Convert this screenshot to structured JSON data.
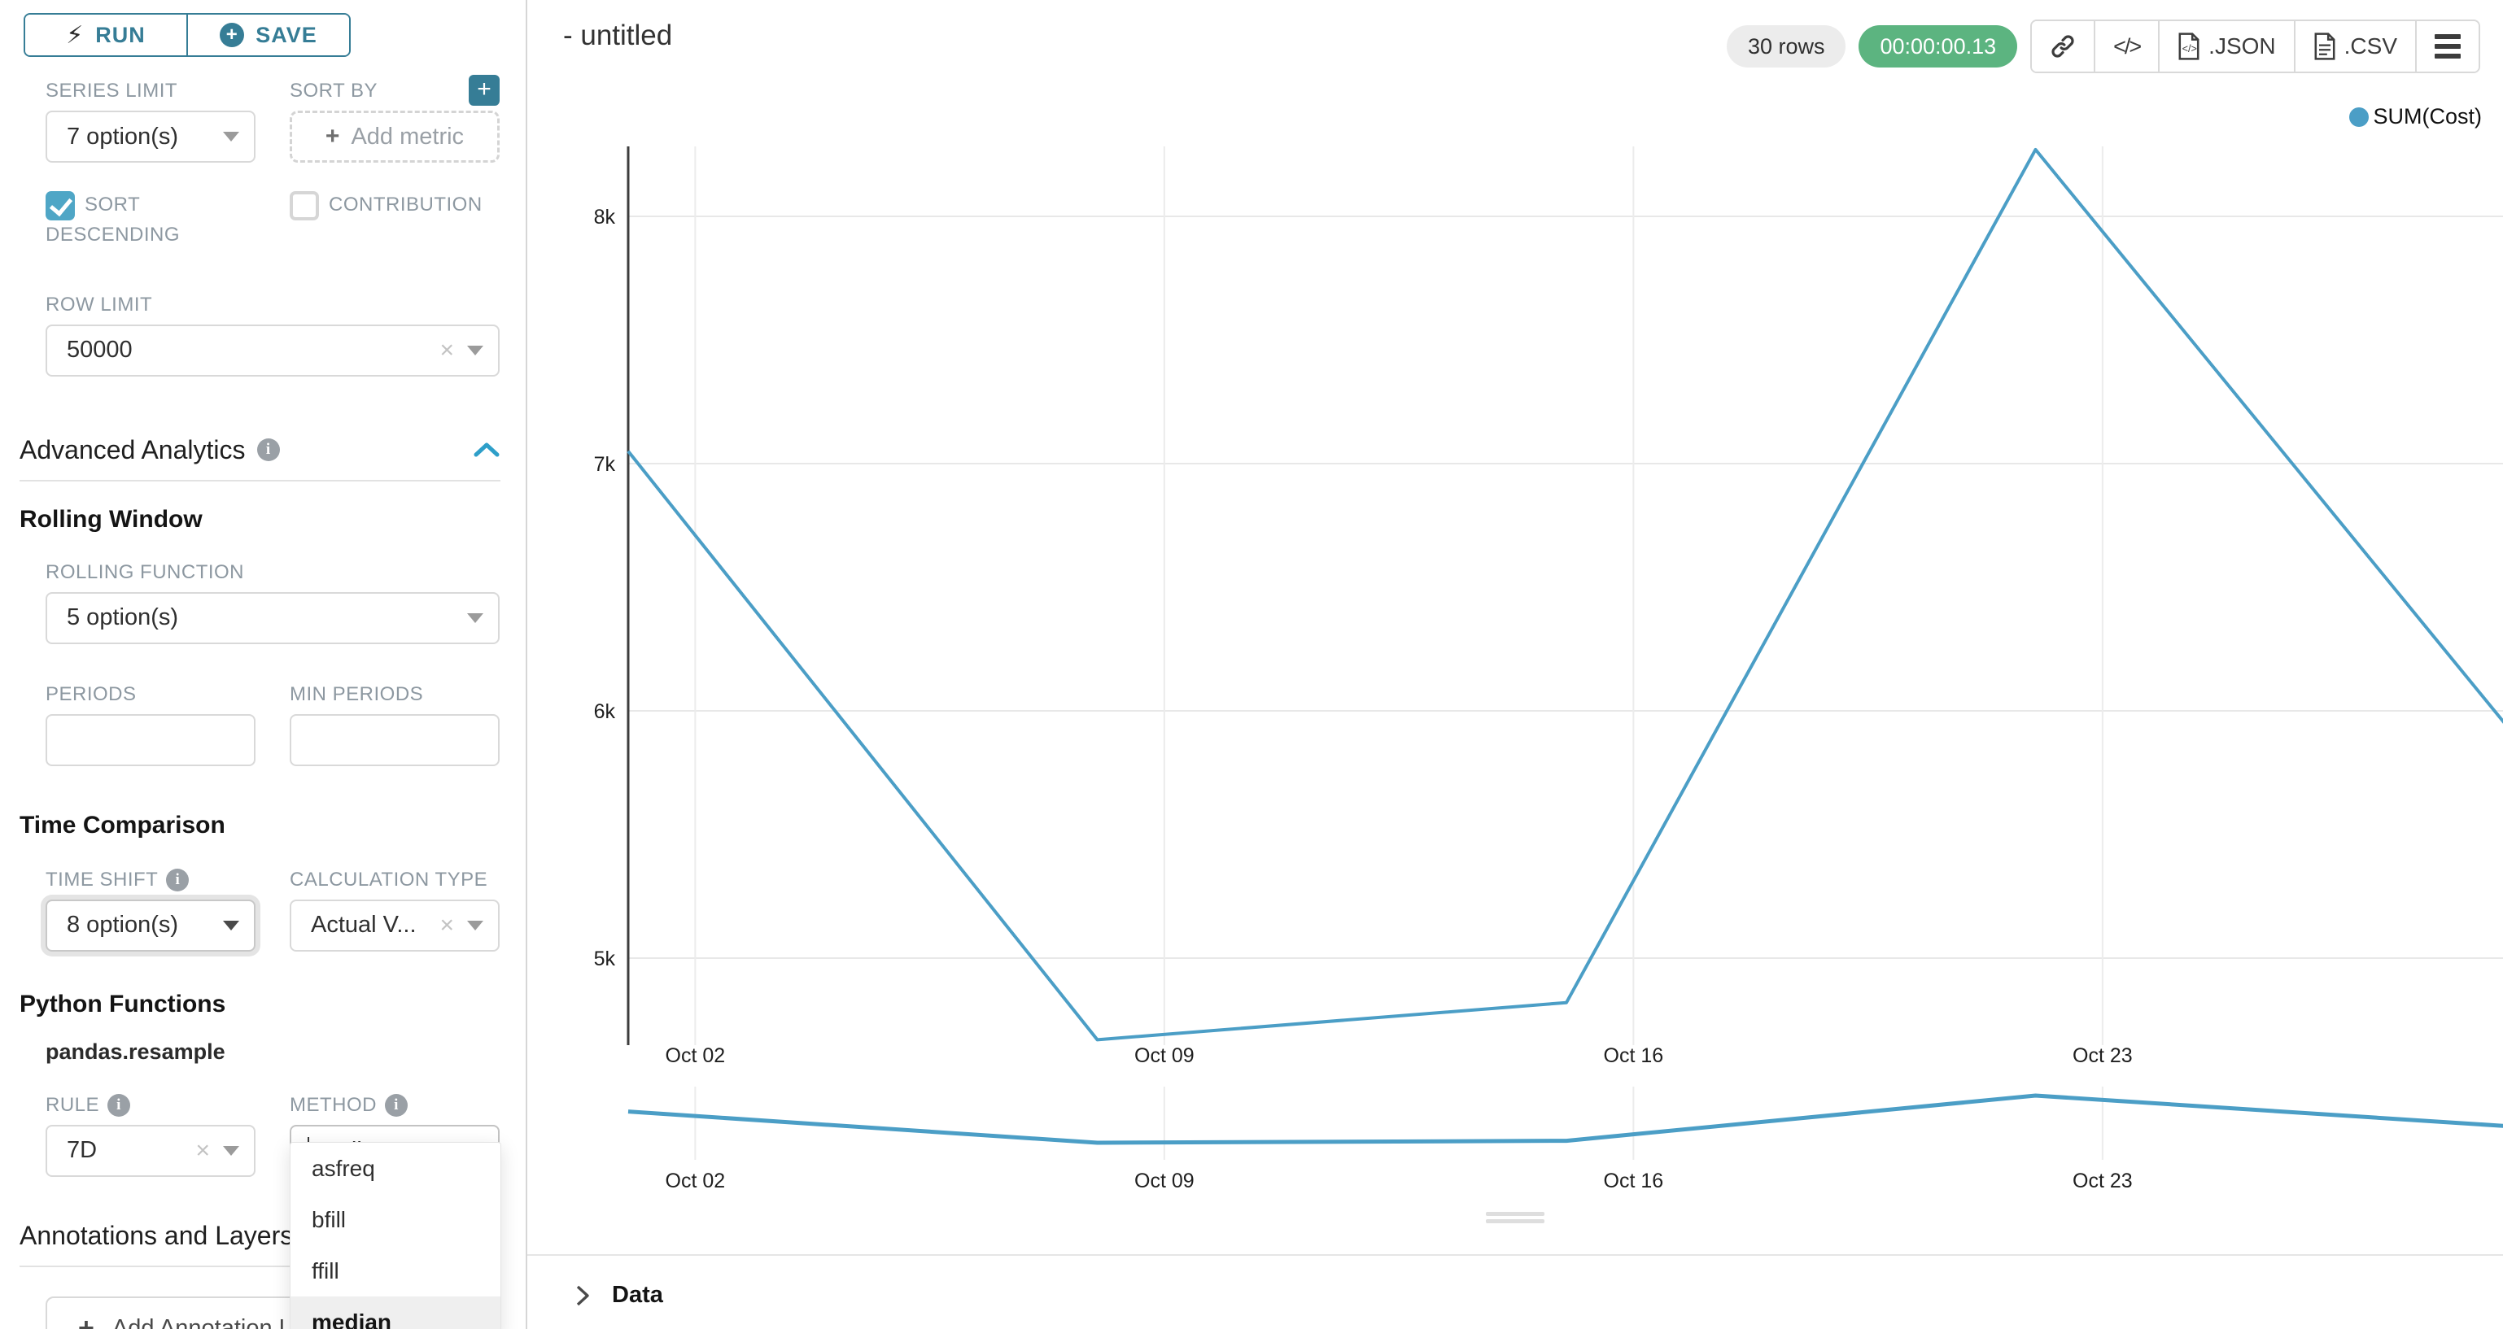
{
  "colors": {
    "accent_teal": "#367D96",
    "checkbox_teal": "#4FA6C6",
    "collapse_caret_blue": "#2E9FC9",
    "timer_green": "#5CB480",
    "line_blue": "#4B9EC6"
  },
  "toolbar": {
    "run_label": "RUN",
    "save_label": "SAVE"
  },
  "controls": {
    "series_limit": {
      "label": "SERIES LIMIT",
      "value": "7 option(s)"
    },
    "sort_by": {
      "label": "SORT BY",
      "placeholder": "Add metric"
    },
    "sort_descending": {
      "label": "SORT DESCENDING",
      "checked": true
    },
    "contribution": {
      "label": "CONTRIBUTION",
      "checked": false
    },
    "row_limit": {
      "label": "ROW LIMIT",
      "value": "50000"
    },
    "advanced_analytics_title": "Advanced Analytics",
    "rolling_window_title": "Rolling Window",
    "rolling_function": {
      "label": "ROLLING FUNCTION",
      "value": "5 option(s)"
    },
    "periods": {
      "label": "PERIODS",
      "value": ""
    },
    "min_periods": {
      "label": "MIN PERIODS",
      "value": ""
    },
    "time_comparison_title": "Time Comparison",
    "time_shift": {
      "label": "TIME SHIFT",
      "value": "8 option(s)"
    },
    "calculation_type": {
      "label": "CALCULATION TYPE",
      "value": "Actual V..."
    },
    "python_functions_title": "Python Functions",
    "python_functions_subtitle": "pandas.resample",
    "rule": {
      "label": "RULE",
      "value": "7D"
    },
    "method": {
      "label": "METHOD",
      "value": "median",
      "options": [
        "asfreq",
        "bfill",
        "ffill",
        "median"
      ],
      "selected": "median"
    },
    "annotations_title": "Annotations and Layers",
    "add_annotation_label": "Add Annotation Layer"
  },
  "header": {
    "title": "- untitled",
    "rows_badge": "30 rows",
    "timer_badge": "00:00:00.13",
    "json_label": ".JSON",
    "csv_label": ".CSV"
  },
  "data_panel": {
    "title": "Data"
  },
  "chart_data": {
    "type": "line",
    "title": "",
    "legend": [
      "SUM(Cost)"
    ],
    "legend_position": "top-right",
    "grid": true,
    "x": [
      "Oct 01",
      "Oct 08",
      "Oct 15",
      "Oct 22",
      "Oct 29"
    ],
    "x_day_offsets": [
      0,
      7,
      14,
      21,
      28
    ],
    "series": [
      {
        "name": "SUM(Cost)",
        "values": [
          7050,
          4670,
          4820,
          8270,
          5950
        ]
      }
    ],
    "y_ticks": [
      {
        "label": "8k",
        "value": 8000
      },
      {
        "label": "7k",
        "value": 7000
      },
      {
        "label": "6k",
        "value": 6000
      },
      {
        "label": "5k",
        "value": 5000
      }
    ],
    "x_ticks": [
      {
        "label": "Oct 02",
        "day": 1
      },
      {
        "label": "Oct 09",
        "day": 8
      },
      {
        "label": "Oct 16",
        "day": 15
      },
      {
        "label": "Oct 23",
        "day": 22
      }
    ],
    "ylim": [
      4400,
      8600
    ],
    "mini_preview": {
      "same_series": true,
      "x_ticks": [
        "Oct 02",
        "Oct 09",
        "Oct 16",
        "Oct 23"
      ]
    }
  }
}
